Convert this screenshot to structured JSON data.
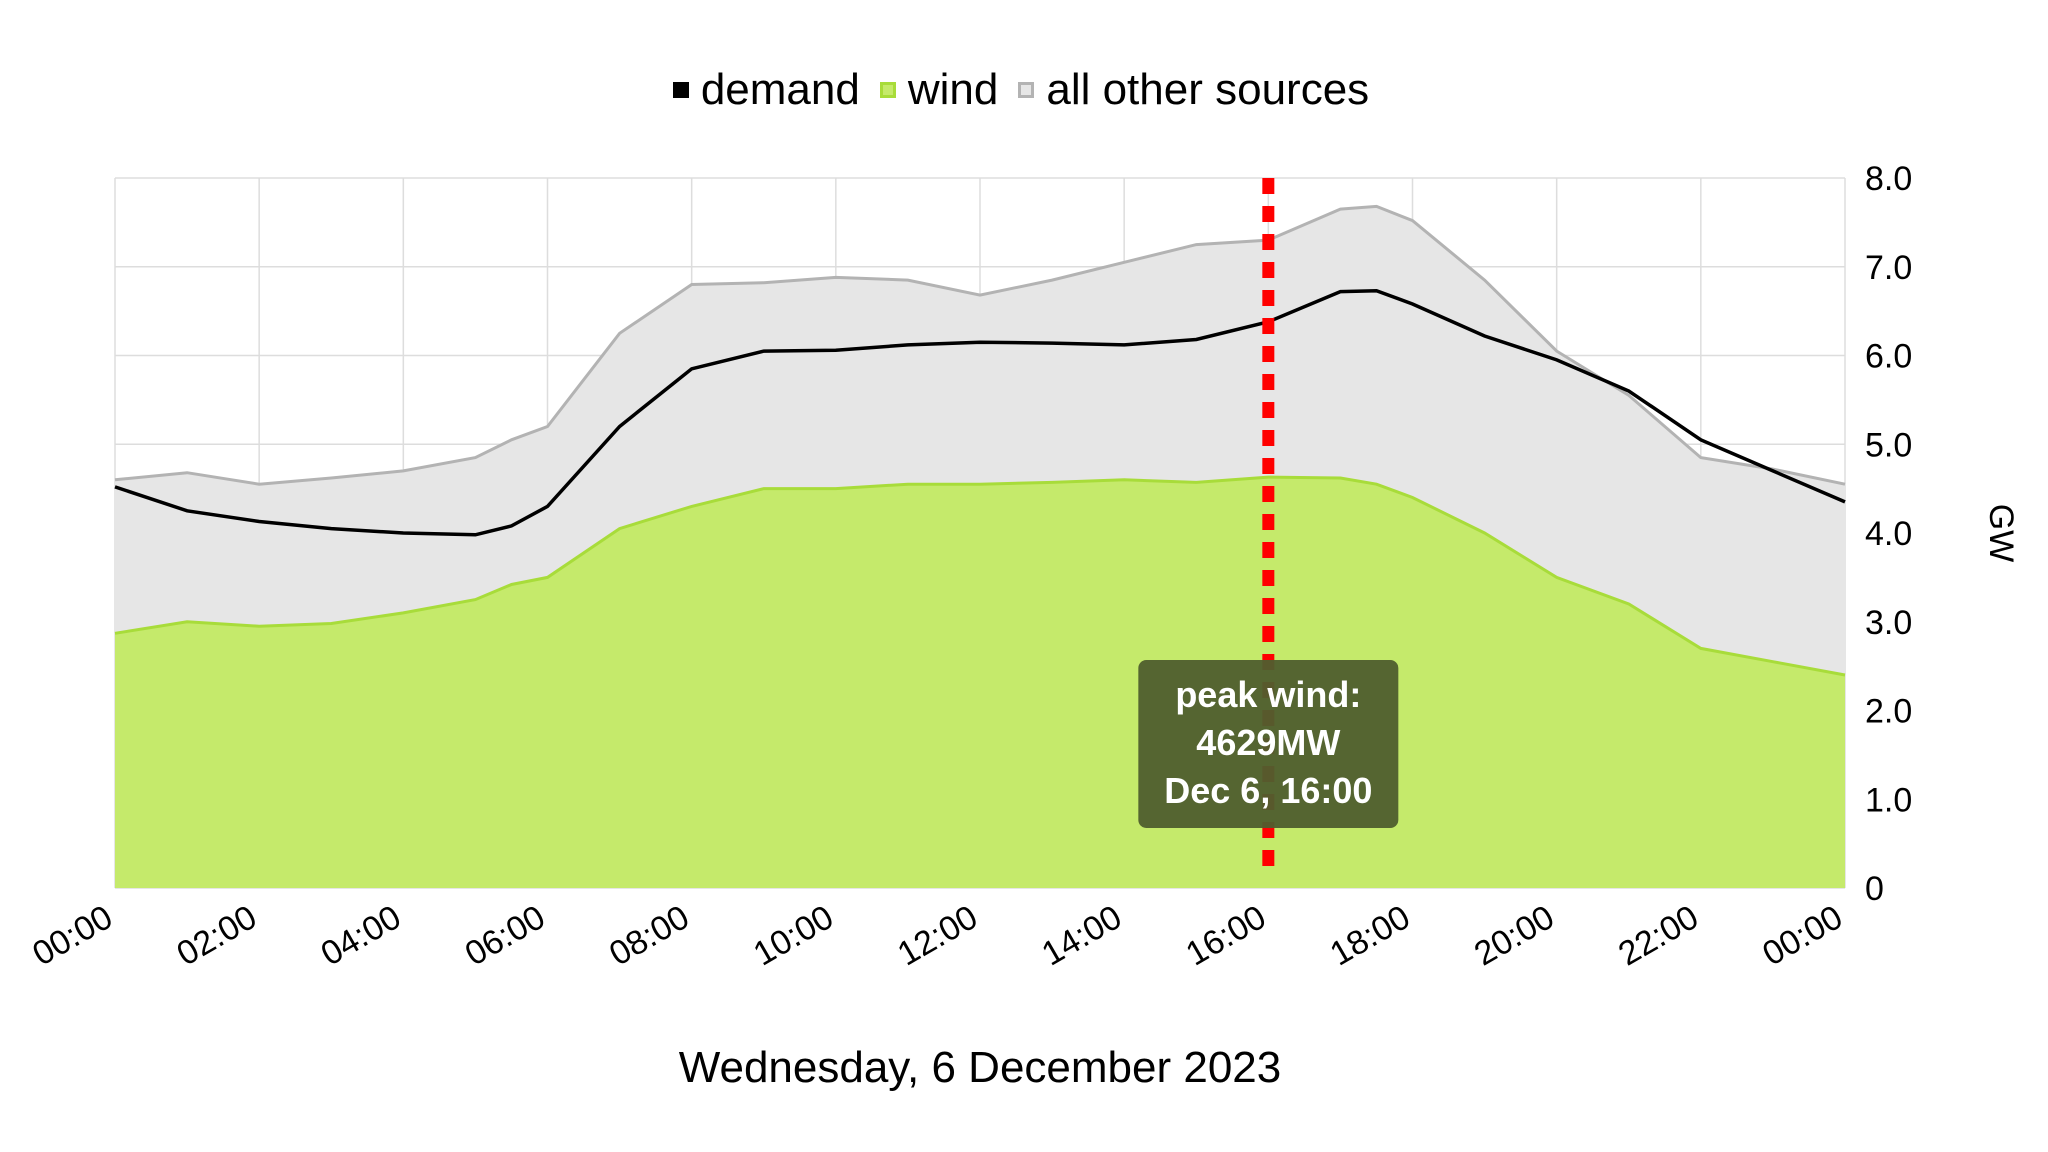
{
  "chart_data": {
    "type": "area",
    "title": "",
    "xlabel": "Wednesday, 6 December 2023",
    "ylabel": "GW",
    "ylim": [
      0,
      8
    ],
    "y_ticks": [
      "0",
      "1.0",
      "2.0",
      "3.0",
      "4.0",
      "5.0",
      "6.0",
      "7.0",
      "8.0"
    ],
    "x_ticks": [
      "00:00",
      "02:00",
      "04:00",
      "06:00",
      "08:00",
      "10:00",
      "12:00",
      "14:00",
      "16:00",
      "18:00",
      "20:00",
      "22:00",
      "00:00"
    ],
    "x_unit": "hours",
    "x_range": [
      0,
      24
    ],
    "grid": true,
    "legend_position": "top",
    "legend": [
      {
        "key": "demand",
        "label": "demand",
        "color": "#000000",
        "fill": "#000000"
      },
      {
        "key": "wind",
        "label": "wind",
        "color": "#a8dc3a",
        "fill": "#c5ea6b"
      },
      {
        "key": "other",
        "label": "all other sources",
        "color": "#b3b3b3",
        "fill": "#e6e6e6"
      }
    ],
    "x": [
      0,
      1,
      2,
      3,
      4,
      5,
      5.5,
      6,
      7,
      8,
      9,
      10,
      11,
      12,
      13,
      14,
      15,
      16,
      17,
      17.5,
      18,
      19,
      20,
      21,
      22,
      23,
      24
    ],
    "series": [
      {
        "name": "demand",
        "values": [
          4.52,
          4.25,
          4.13,
          4.05,
          4.0,
          3.98,
          4.08,
          4.3,
          5.2,
          5.85,
          6.05,
          6.06,
          6.12,
          6.15,
          6.14,
          6.12,
          6.18,
          6.38,
          6.72,
          6.73,
          6.58,
          6.22,
          5.95,
          5.6,
          5.05,
          4.7,
          4.35
        ]
      },
      {
        "name": "wind",
        "values": [
          2.87,
          3.0,
          2.95,
          2.98,
          3.1,
          3.25,
          3.42,
          3.5,
          4.05,
          4.3,
          4.5,
          4.5,
          4.55,
          4.55,
          4.57,
          4.6,
          4.57,
          4.63,
          4.62,
          4.55,
          4.4,
          4.0,
          3.5,
          3.2,
          2.7,
          2.55,
          2.4
        ]
      },
      {
        "name": "all other sources",
        "values": [
          4.6,
          4.68,
          4.55,
          4.62,
          4.7,
          4.85,
          5.05,
          5.2,
          6.25,
          6.8,
          6.82,
          6.88,
          6.85,
          6.68,
          6.85,
          7.05,
          7.25,
          7.3,
          7.65,
          7.68,
          7.52,
          6.85,
          6.05,
          5.55,
          4.85,
          4.72,
          4.55
        ]
      }
    ],
    "marker": {
      "x": 16,
      "color": "#ff0000"
    },
    "annotation": {
      "lines": [
        "peak wind:",
        "4629MW",
        "Dec 6, 16:00"
      ],
      "background": "#4f5e2e",
      "text_color": "#ffffff"
    }
  }
}
